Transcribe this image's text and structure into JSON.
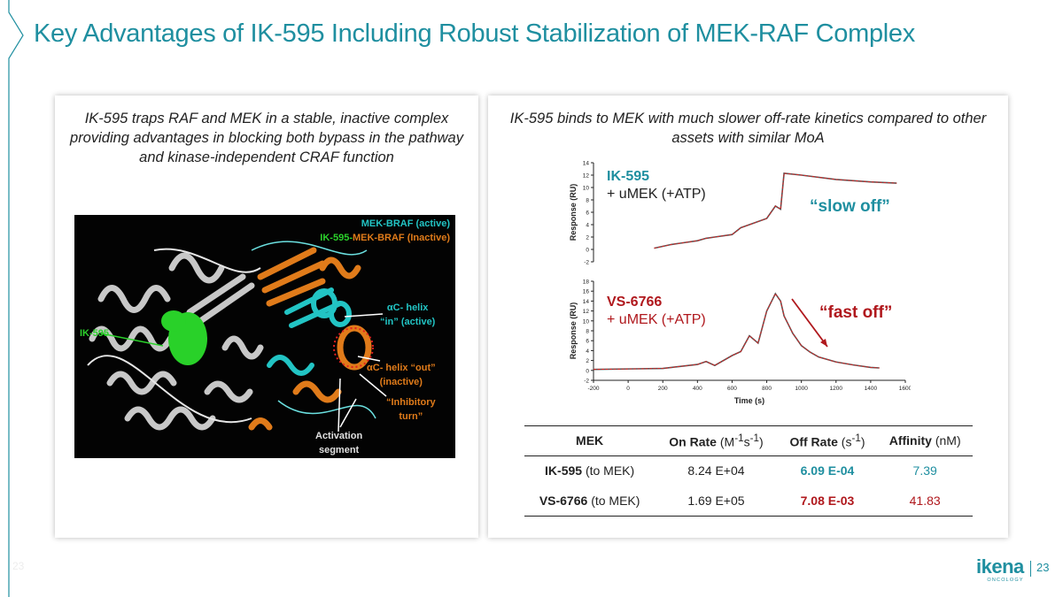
{
  "slide": {
    "title": "Key Advantages of IK-595 Including Robust Stabilization of MEK-RAF Complex",
    "page_number": "23",
    "footer_left": "23"
  },
  "colors": {
    "teal": "#1f8fa0",
    "red": "#b0181d",
    "orange": "#e07b1a",
    "cyan": "#22c4c4",
    "green": "#2bd12b"
  },
  "left_panel": {
    "caption": "IK-595 traps RAF and MEK in a stable, inactive complex providing advantages in blocking both bypass in the pathway and kinase-independent CRAF function",
    "structure": {
      "legend_active": "MEK-BRAF (active)",
      "legend_inactive_prefix": "IK-595-",
      "legend_inactive_rest": "MEK-BRAF (Inactive)",
      "label_helix_in_1": "αC- helix",
      "label_helix_in_2": "“in” (active)",
      "label_ik595": "IK-595",
      "label_helix_out_1": "αC- helix “out”",
      "label_helix_out_2": "(inactive)",
      "label_turn_1": "“Inhibitory",
      "label_turn_2": "turn”",
      "label_activation_1": "Activation",
      "label_activation_2": "segment"
    }
  },
  "right_panel": {
    "caption": "IK-595 binds to MEK with much slower off-rate kinetics compared to other assets with similar MoA",
    "sensor_top": {
      "drug": "IK-595",
      "condition": "+ uMEK (+ATP)",
      "annotation": "“slow off”"
    },
    "sensor_bottom": {
      "drug": "VS-6766",
      "condition": "+ uMEK (+ATP)",
      "annotation": "“fast off”"
    },
    "table": {
      "headers": {
        "mek": "MEK",
        "on_rate_bold": "On Rate",
        "on_rate_unit": "(M-1s-1)",
        "off_rate_bold": "Off Rate",
        "off_rate_unit": "(s-1)",
        "affinity_bold": "Affinity",
        "affinity_unit": "(nM)"
      },
      "rows": [
        {
          "name": "IK-595",
          "target": "(to MEK)",
          "on_rate": "8.24 E+04",
          "off_rate": "6.09 E-04",
          "affinity": "7.39"
        },
        {
          "name": "VS-6766",
          "target": "(to MEK)",
          "on_rate": "1.69 E+05",
          "off_rate": "7.08 E-03",
          "affinity": "41.83"
        }
      ]
    }
  },
  "chart_data": [
    {
      "type": "line",
      "ylabel": "Response (RU)",
      "ylim": [
        -2,
        14
      ],
      "yticks": [
        -2,
        0,
        2,
        4,
        6,
        8,
        10,
        12,
        14
      ],
      "xlim": [
        -200,
        1600
      ],
      "series": [
        {
          "x": [
            150,
            200,
            250,
            300,
            400,
            450,
            500,
            600,
            650,
            700,
            800,
            850,
            880,
            900,
            1000,
            1200,
            1400,
            1550
          ],
          "values": [
            0.2,
            0.5,
            0.8,
            1.0,
            1.4,
            1.8,
            2.0,
            2.4,
            3.5,
            4.0,
            5.0,
            7.0,
            6.5,
            12.3,
            12.0,
            11.3,
            10.9,
            10.7
          ]
        }
      ]
    },
    {
      "type": "line",
      "xlabel": "Time (s)",
      "ylabel": "Response (RU)",
      "ylim": [
        -2,
        18
      ],
      "yticks": [
        -2,
        0,
        2,
        4,
        6,
        8,
        10,
        12,
        14,
        16,
        18
      ],
      "xlim": [
        -200,
        1600
      ],
      "xticks": [
        -200,
        0,
        200,
        400,
        600,
        800,
        1000,
        1200,
        1400,
        1600
      ],
      "series": [
        {
          "x": [
            -200,
            0,
            200,
            250,
            300,
            400,
            450,
            500,
            600,
            650,
            700,
            750,
            800,
            850,
            880,
            900,
            950,
            1000,
            1050,
            1100,
            1200,
            1300,
            1400,
            1450
          ],
          "values": [
            0.2,
            0.3,
            0.4,
            0.6,
            0.8,
            1.2,
            1.8,
            1.0,
            3.0,
            3.8,
            7.0,
            5.5,
            12.0,
            15.5,
            14.0,
            11.0,
            7.5,
            5.0,
            3.7,
            2.7,
            1.7,
            1.1,
            0.6,
            0.5
          ]
        }
      ]
    }
  ]
}
